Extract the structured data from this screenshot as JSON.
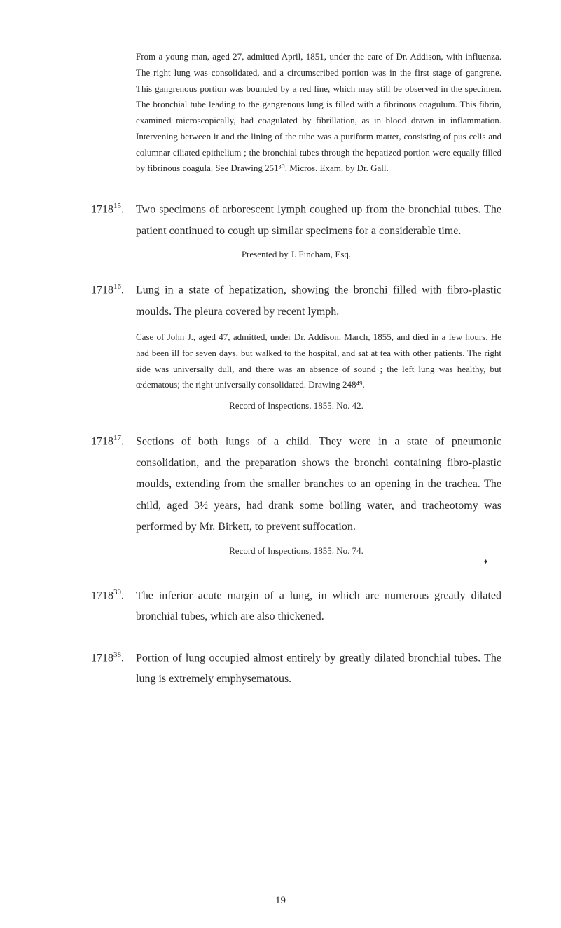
{
  "intro": {
    "text": "From a young man, aged 27, admitted April, 1851, under the care of Dr. Addison, with influenza. The right lung was consolidated, and a circumscribed portion was in the first stage of gangrene. This gangrenous portion was bounded by a red line, which may still be observed in the specimen. The bronchial tube leading to the gangrenous lung is filled with a fibrinous coagulum. This fibrin, examined microscopically, had coagulated by fibrillation, as in blood drawn in inflammation. Intervening between it and the lining of the tube was a puriform matter, consisting of pus cells and columnar ciliated epithelium ; the bronchial tubes through the hepatized portion were equally filled by fibrinous coagula. See Drawing 251³⁰. Micros. Exam. by Dr. Gall."
  },
  "entries": [
    {
      "number": "1718",
      "sup": "15",
      "main": "Two specimens of arborescent lymph coughed up from the bronchial tubes. The patient continued to cough up similar specimens for a considerable time.",
      "presented": "Presented by J. Fincham, Esq."
    },
    {
      "number": "1718",
      "sup": "16",
      "main": "Lung in a state of hepatization, showing the bronchi filled with fibro-plastic moulds. The pleura covered by recent lymph.",
      "case": "Case of John J., aged 47, admitted, under Dr. Addison, March, 1855, and died in a few hours. He had been ill for seven days, but walked to the hospital, and sat at tea with other patients. The right side was universally dull, and there was an absence of sound ; the left lung was healthy, but œdematous; the right universally consolidated. Drawing 248⁴⁹.",
      "record": "Record of Inspections, 1855. No. 42."
    },
    {
      "number": "1718",
      "sup": "17",
      "main": "Sections of both lungs of a child. They were in a state of pneumonic consolidation, and the preparation shows the bronchi containing fibro-plastic moulds, extending from the smaller branches to an opening in the trachea. The child, aged 3½ years, had drank some boiling water, and tracheotomy was performed by Mr. Birkett, to prevent suffocation.",
      "record": "Record of Inspections, 1855. No. 74."
    },
    {
      "number": "1718",
      "sup": "30",
      "main": "The inferior acute margin of a lung, in which are numerous greatly dilated bronchial tubes, which are also thickened."
    },
    {
      "number": "1718",
      "sup": "38",
      "main": "Portion of lung occupied almost entirely by greatly dilated bronchial tubes. The lung is extremely emphysematous."
    }
  ],
  "diamond": "♦",
  "pageNumber": "19"
}
